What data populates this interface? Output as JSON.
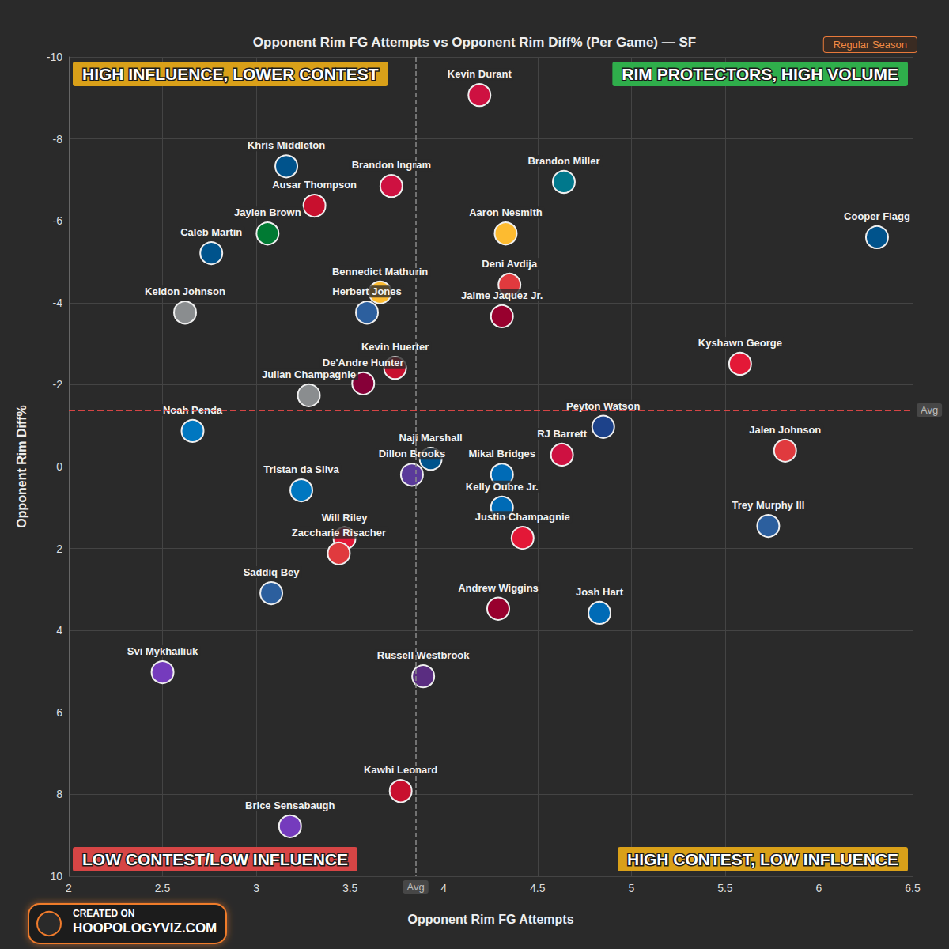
{
  "chart_data": {
    "type": "scatter",
    "title": "Opponent Rim FG Attempts vs Opponent Rim Diff% (Per Game) — SF",
    "badge": "Regular Season",
    "x_label": "Opponent Rim FG Attempts",
    "y_label": "Opponent Rim Diff%",
    "xlim": [
      2,
      6.5
    ],
    "xticks": [
      2,
      2.5,
      3,
      3.5,
      4,
      4.5,
      5,
      5.5,
      6,
      6.5
    ],
    "ylim": [
      -10,
      10
    ],
    "yticks": [
      -10,
      -8,
      -6,
      -4,
      -2,
      0,
      2,
      4,
      6,
      8,
      10
    ],
    "grid": true,
    "marker": "circle",
    "point_labels": [
      "Kevin Durant",
      "Brandon Ingram",
      "Khris Middleton",
      "Ausar Thompson",
      "Jaylen Brown",
      "Caleb Martin",
      "Keldon Johnson",
      "Brandon Miller",
      "Aaron Nesmith",
      "Cooper Flagg",
      "Bennedict Mathurin",
      "Deni Avdija",
      "Herbert Jones",
      "Jaime Jaquez Jr.",
      "Kevin Huerter",
      "Kyshawn George",
      "De'Andre Hunter",
      "Julian Champagnie",
      "Noah Penda",
      "Peyton Watson",
      "RJ Barrett",
      "Jalen Johnson",
      "Naji Marshall",
      "Mikal Bridges",
      "Dillon Brooks",
      "Tristan da Silva",
      "Kelly Oubre Jr.",
      "Trey Murphy III",
      "Will Riley",
      "Justin Champagnie",
      "Zaccharie Risacher",
      "Saddiq Bey",
      "Andrew Wiggins",
      "Josh Hart",
      "Svi Mykhailiuk",
      "Russell Westbrook",
      "Kawhi Leonard",
      "Brice Sensabaugh"
    ],
    "x": [
      4.19,
      3.72,
      3.16,
      3.31,
      3.06,
      2.76,
      2.62,
      4.64,
      4.33,
      6.31,
      3.66,
      4.35,
      3.59,
      4.31,
      3.74,
      5.58,
      3.57,
      3.28,
      2.66,
      4.85,
      4.63,
      5.82,
      3.93,
      4.31,
      3.83,
      3.24,
      4.31,
      5.73,
      3.47,
      4.42,
      3.44,
      3.08,
      4.29,
      4.83,
      2.5,
      3.89,
      3.77,
      3.18
    ],
    "values": [
      -9.07,
      -6.85,
      -7.33,
      -6.37,
      -5.69,
      -5.21,
      -3.76,
      -6.95,
      -5.69,
      -5.6,
      -4.25,
      -4.44,
      -3.76,
      -3.67,
      -2.41,
      -2.51,
      -2.03,
      -1.74,
      -0.87,
      -0.97,
      -0.29,
      -0.39,
      -0.19,
      0.2,
      0.2,
      0.58,
      1.0,
      1.45,
      1.75,
      1.74,
      2.12,
      3.09,
      3.47,
      3.57,
      5.02,
      5.12,
      7.92,
      8.78
    ],
    "colors": [
      "#ce1141",
      "#ce1141",
      "#00538c",
      "#c8102e",
      "#007a33",
      "#00538c",
      "#8a8d8f",
      "#00788c",
      "#fdbb30",
      "#00538c",
      "#fdbb30",
      "#e03a3e",
      "#2c5f9e",
      "#98002e",
      "#c8102e",
      "#e31837",
      "#860038",
      "#8a8d8f",
      "#0077c0",
      "#1d428a",
      "#ce1141",
      "#e03a3e",
      "#00538c",
      "#006bb6",
      "#5a3a9a",
      "#0077c0",
      "#006bb6",
      "#2c5f9e",
      "#e31837",
      "#e31837",
      "#e03a3e",
      "#2c5f9e",
      "#98002e",
      "#006bb6",
      "#753bbd",
      "#5a2d81",
      "#c8102e",
      "#753bbd"
    ],
    "avg_x": 3.85,
    "avg_y": -1.38,
    "avg_label": "Avg",
    "quadrant_labels": {
      "top_left": "HIGH INFLUENCE, LOWER CONTEST",
      "top_right": "RIM PROTECTORS, HIGH VOLUME",
      "bottom_left": "LOW CONTEST/LOW INFLUENCE",
      "bottom_right": "HIGH CONTEST, LOW INFLUENCE"
    },
    "footer": [
      "CREATED ON",
      "HOOPOLOGYVIZ.COM"
    ]
  }
}
